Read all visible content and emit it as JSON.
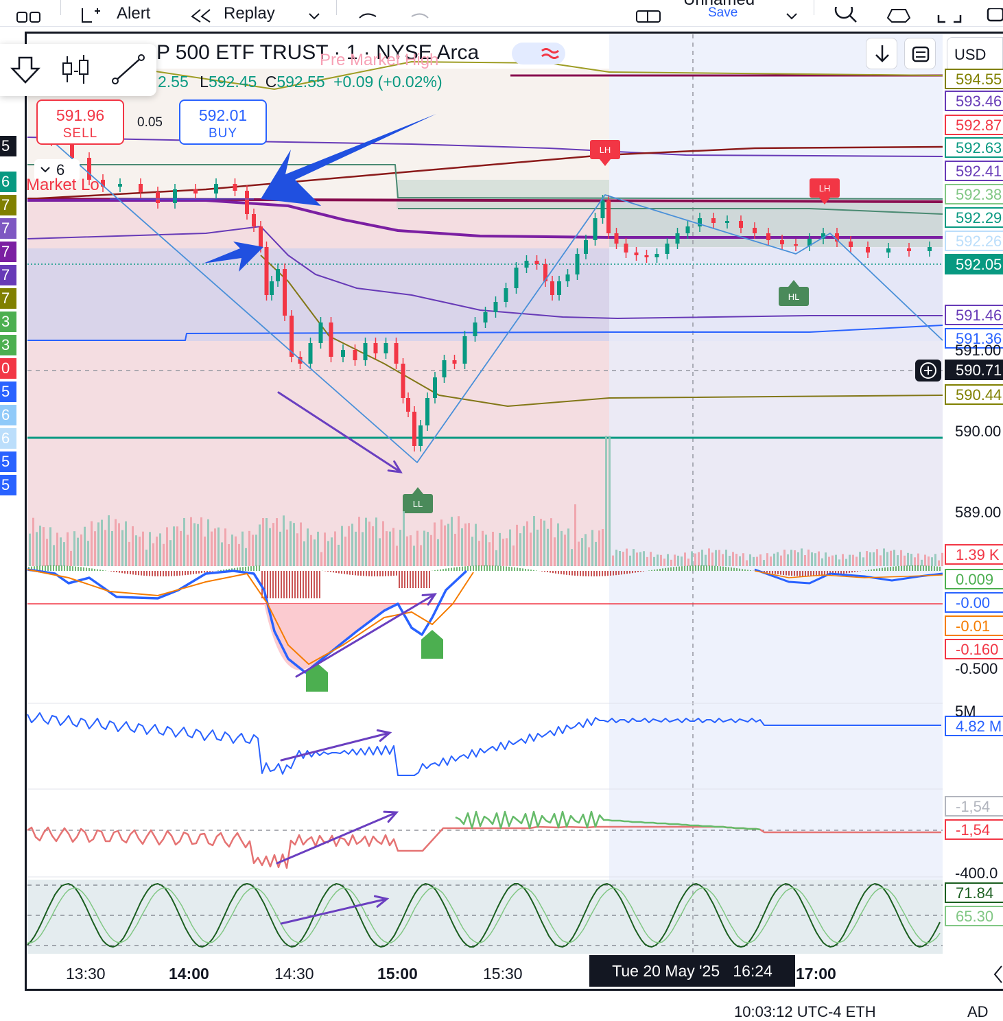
{
  "toolbar_top": {
    "alert_label": "Alert",
    "replay_label": "Replay",
    "layout_name": "Unnamed",
    "save_label": "Save"
  },
  "symbol": {
    "title": "P 500 ETF TRUST · 1 · NYSE Arca",
    "low_label": "L",
    "low_value": "592.45",
    "close_label": "C",
    "close_value": "592.55",
    "change": "+0.09 (+0.02%)",
    "high_value": "2.55"
  },
  "annotations": {
    "pre_market_high": "Pre Market High",
    "market_label": "Market Lo",
    "collapse_count": "6",
    "patterns": [
      "LH",
      "LH",
      "HL",
      "LL"
    ]
  },
  "trade": {
    "sell_price": "591.96",
    "sell_label": "SELL",
    "buy_price": "592.01",
    "buy_label": "BUY",
    "spread": "0.05"
  },
  "currency": "USD",
  "left_badges": [
    {
      "text": "5",
      "color": "#131722"
    },
    {
      "text": "6",
      "color": "#089981"
    },
    {
      "text": "7",
      "color": "#808000"
    },
    {
      "text": "7",
      "color": "#7e57c2"
    },
    {
      "text": "7",
      "color": "#7b1fa2"
    },
    {
      "text": "7",
      "color": "#673ab7"
    },
    {
      "text": "7",
      "color": "#808000"
    },
    {
      "text": "3",
      "color": "#4caf50"
    },
    {
      "text": "3",
      "color": "#4caf50"
    },
    {
      "text": "0",
      "color": "#f23645"
    },
    {
      "text": "5",
      "color": "#2962ff"
    },
    {
      "text": "6",
      "color": "#90caf9"
    },
    {
      "text": "6",
      "color": "#bbdefb"
    },
    {
      "text": "5",
      "color": "#2962ff"
    },
    {
      "text": "5",
      "color": "#2962ff"
    }
  ],
  "price_labels": [
    {
      "text": "594.55",
      "color": "#808000",
      "top": 100,
      "fill": false
    },
    {
      "text": "593.46",
      "color": "#673ab7",
      "top": 132,
      "fill": false
    },
    {
      "text": "592.87",
      "color": "#f23645",
      "top": 167,
      "fill": false
    },
    {
      "text": "592.63",
      "color": "#089981",
      "top": 200,
      "fill": false
    },
    {
      "text": "592.41",
      "color": "#673ab7",
      "top": 234,
      "fill": false
    },
    {
      "text": "592.38",
      "color": "#81c784",
      "top": 268,
      "fill": false
    },
    {
      "text": "592.29",
      "color": "#089981",
      "top": 302,
      "fill": false
    },
    {
      "text": "592.26",
      "color": "#bbdefb",
      "top": 336,
      "fill": false
    },
    {
      "text": "592.05",
      "color": "#089981",
      "top": 370,
      "fill": true
    },
    {
      "text": "591.46",
      "color": "#673ab7",
      "top": 444,
      "fill": false
    },
    {
      "text": "591.36",
      "color": "#2962ff",
      "top": 478,
      "fill": false
    },
    {
      "text": "590.71",
      "color": "#131722",
      "top": 524,
      "fill": true
    },
    {
      "text": "590.44",
      "color": "#808000",
      "top": 560,
      "fill": false
    },
    {
      "text": "1.39 K",
      "color": "#f23645",
      "top": 793,
      "fill": false
    },
    {
      "text": "0.009",
      "color": "#4caf50",
      "top": 829,
      "fill": false
    },
    {
      "text": "-0.00",
      "color": "#2962ff",
      "top": 863,
      "fill": false
    },
    {
      "text": "-0.01",
      "color": "#f57c00",
      "top": 897,
      "fill": false
    },
    {
      "text": "-0.160",
      "color": "#f23645",
      "top": 931,
      "fill": false
    },
    {
      "text": "4.82 M",
      "color": "#2962ff",
      "top": 1043,
      "fill": false
    },
    {
      "text": "-1,54",
      "color": "#b2b5be",
      "top": 1160,
      "fill": false
    },
    {
      "text": "-1,54",
      "color": "#f23645",
      "top": 1194,
      "fill": false
    },
    {
      "text": "71.84",
      "color": "#1b5e20",
      "top": 1286,
      "fill": false
    },
    {
      "text": "65.30",
      "color": "#81c784",
      "top": 1320,
      "fill": false
    }
  ],
  "price_ticks": [
    {
      "text": "590.00",
      "top": 616
    },
    {
      "text": "589.00",
      "top": 734
    },
    {
      "text": "-0.500",
      "top": 962
    },
    {
      "text": "5M",
      "top": 1024
    },
    {
      "text": "-400.0",
      "top": 1260
    },
    {
      "text": "591.00",
      "top": 498
    }
  ],
  "x_ticks": [
    {
      "text": "13:30",
      "left": 96,
      "bold": false
    },
    {
      "text": "14:00",
      "left": 246,
      "bold": true
    },
    {
      "text": "14:30",
      "left": 400,
      "bold": false
    },
    {
      "text": "15:00",
      "left": 550,
      "bold": true
    },
    {
      "text": "15:30",
      "left": 704,
      "bold": false
    },
    {
      "text": "17:00",
      "left": 1160,
      "bold": true
    }
  ],
  "crosshair_date": "Tue 20 May '25   16:24",
  "status_bar": "10:03:12 UTC-4   ETH",
  "status_tail": "AD"
}
